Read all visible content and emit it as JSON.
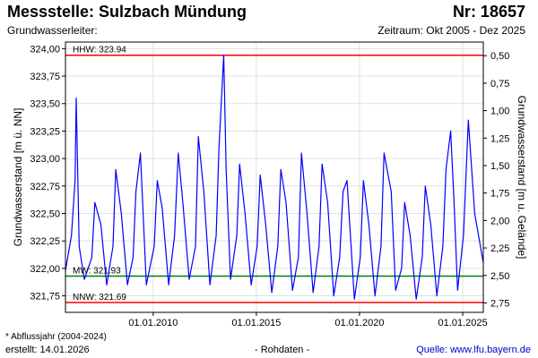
{
  "header": {
    "title": "Messstelle: Sulzbach Mündung",
    "number": "Nr: 18657",
    "aquifer": "Grundwasserleiter:",
    "period": "Zeitraum: Okt 2005 - Dez 2025"
  },
  "footer": {
    "note": "* Abflussjahr (2004-2024)",
    "created": "erstellt:  14.01.2026",
    "raw": "- Rohdaten -",
    "source": "Quelle: www.lfu.bayern.de"
  },
  "colors": {
    "series": "#0000ff",
    "hhw": "#ff0000",
    "nnw": "#ff0000",
    "mw": "#008000"
  },
  "chart_data": {
    "type": "line",
    "ylabel": "Grundwasserstand [m ü. NN]",
    "y2label": "Grundwasserstand [m u. Gelände]",
    "ylim": [
      321.6,
      324.06
    ],
    "y2lim": [
      2.836,
      0.376
    ],
    "xlim": [
      "2005-10-01",
      "2025-12-31"
    ],
    "yticks": [
      321.75,
      322.0,
      322.25,
      322.5,
      322.75,
      323.0,
      323.25,
      323.5,
      323.75,
      324.0
    ],
    "yticklabels": [
      "321,75",
      "322,00",
      "322,25",
      "322,50",
      "322,75",
      "323,00",
      "323,25",
      "323,50",
      "323,75",
      "324,00"
    ],
    "y2ticks": [
      2.75,
      2.5,
      2.25,
      2.0,
      1.75,
      1.5,
      1.25,
      1.0,
      0.75,
      0.5
    ],
    "y2ticklabels": [
      "2,75",
      "2,50",
      "2,25",
      "2,00",
      "1,75",
      "1,50",
      "1,25",
      "1,00",
      "0,75",
      "0,50"
    ],
    "xticks": [
      "2010-01-01",
      "2015-01-01",
      "2020-01-01",
      "2025-01-01"
    ],
    "xticklabels": [
      "01.01.2010",
      "01.01.2015",
      "01.01.2020",
      "01.01.2025"
    ],
    "grid": true,
    "reference_lines": [
      {
        "label": "HHW: 323.94",
        "value": 323.94,
        "color": "#ff0000"
      },
      {
        "label": "MW: 321.93",
        "value": 321.93,
        "color": "#008000"
      },
      {
        "label": "NNW: 321.69",
        "value": 321.69,
        "color": "#ff0000"
      }
    ],
    "series": [
      {
        "color": "#0000ff",
        "x": [
          "2005-10-01",
          "2006-01-15",
          "2006-03-20",
          "2006-04-10",
          "2006-06-01",
          "2006-09-01",
          "2007-01-10",
          "2007-03-05",
          "2007-06-20",
          "2007-10-01",
          "2008-01-20",
          "2008-03-10",
          "2008-06-15",
          "2008-10-01",
          "2009-01-10",
          "2009-03-01",
          "2009-05-20",
          "2009-09-01",
          "2010-01-20",
          "2010-03-15",
          "2010-06-10",
          "2010-10-01",
          "2011-01-15",
          "2011-03-20",
          "2011-06-10",
          "2011-10-01",
          "2012-01-20",
          "2012-03-10",
          "2012-06-15",
          "2012-10-01",
          "2013-01-20",
          "2013-03-10",
          "2013-06-03",
          "2013-07-15",
          "2013-10-01",
          "2014-01-20",
          "2014-03-10",
          "2014-06-15",
          "2014-10-01",
          "2015-01-15",
          "2015-03-10",
          "2015-06-15",
          "2015-10-01",
          "2016-01-15",
          "2016-03-10",
          "2016-06-10",
          "2016-10-01",
          "2017-01-15",
          "2017-03-10",
          "2017-06-15",
          "2017-10-01",
          "2018-01-15",
          "2018-03-10",
          "2018-06-15",
          "2018-10-01",
          "2019-01-15",
          "2019-03-15",
          "2019-05-25",
          "2019-10-01",
          "2020-01-15",
          "2020-03-10",
          "2020-06-15",
          "2020-10-01",
          "2021-01-15",
          "2021-03-10",
          "2021-07-15",
          "2021-10-01",
          "2022-01-15",
          "2022-03-10",
          "2022-06-15",
          "2022-10-01",
          "2023-01-15",
          "2023-03-10",
          "2023-06-15",
          "2023-10-01",
          "2024-01-15",
          "2024-03-10",
          "2024-06-02",
          "2024-08-01",
          "2024-10-01",
          "2025-01-15",
          "2025-04-10",
          "2025-08-01",
          "2025-12-31"
        ],
        "y": [
          321.98,
          322.3,
          322.8,
          323.55,
          322.2,
          321.9,
          322.1,
          322.6,
          322.4,
          321.85,
          322.2,
          322.9,
          322.5,
          321.85,
          322.1,
          322.7,
          323.05,
          321.85,
          322.2,
          322.8,
          322.55,
          321.85,
          322.3,
          323.05,
          322.6,
          321.9,
          322.2,
          323.2,
          322.7,
          321.85,
          322.3,
          323.1,
          323.94,
          322.9,
          321.9,
          322.3,
          322.95,
          322.5,
          321.85,
          322.2,
          322.85,
          322.4,
          321.78,
          322.2,
          322.9,
          322.6,
          321.8,
          322.1,
          323.05,
          322.5,
          321.78,
          322.2,
          322.95,
          322.6,
          321.75,
          322.1,
          322.7,
          322.8,
          321.72,
          322.1,
          322.8,
          322.4,
          321.75,
          322.2,
          323.05,
          322.7,
          321.8,
          322.0,
          322.6,
          322.3,
          321.72,
          322.1,
          322.75,
          322.4,
          321.75,
          322.2,
          322.9,
          323.25,
          322.6,
          321.8,
          322.3,
          323.35,
          322.5,
          322.05
        ]
      }
    ]
  }
}
